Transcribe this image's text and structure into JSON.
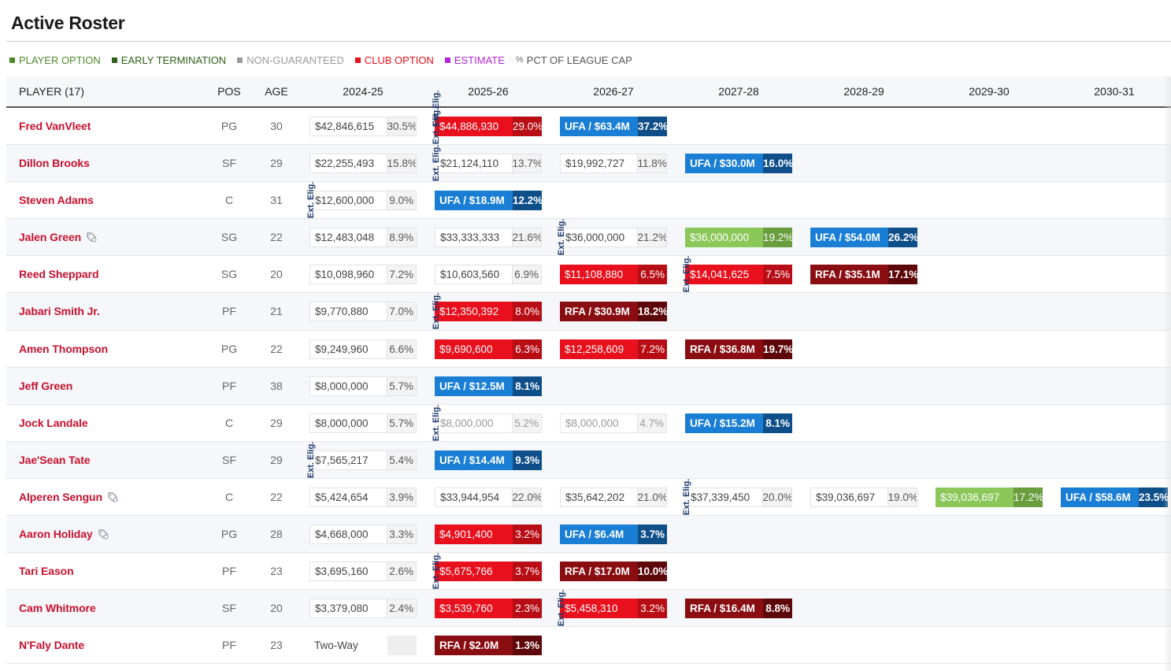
{
  "title": "Active Roster",
  "legend": [
    {
      "label": "PLAYER OPTION",
      "color": "#4e8a2b",
      "swatch": "#4e8a2b"
    },
    {
      "label": "EARLY TERMINATION",
      "color": "#2e5f19",
      "swatch": "#2e5f19"
    },
    {
      "label": "NON-GUARANTEED",
      "color": "#9a9a9a",
      "swatch": "#9a9a9a"
    },
    {
      "label": "CLUB OPTION",
      "color": "#e8101c",
      "swatch": "#e8101c"
    },
    {
      "label": "ESTIMATE",
      "color": "#b626d9",
      "swatch": "#b626d9"
    },
    {
      "label": "PCT OF LEAGUE CAP",
      "color": "#555555",
      "swatch": "",
      "prefix": "%"
    }
  ],
  "columns": {
    "player": "PLAYER (17)",
    "pos": "POS",
    "age": "AGE",
    "seasons": [
      "2024-25",
      "2025-26",
      "2026-27",
      "2027-28",
      "2028-29",
      "2029-30",
      "2030-31"
    ]
  },
  "ext_label": "Ext. Elig.",
  "rows": [
    {
      "name": "Fred VanVleet",
      "pos": "PG",
      "age": "30",
      "tag": false,
      "cells": [
        {
          "col": 0,
          "type": "g",
          "amt": "$42,846,615",
          "pct": "30.5%"
        },
        {
          "col": 1,
          "type": "club",
          "amt": "$44,886,930",
          "pct": "29.0%"
        },
        {
          "col": 2,
          "type": "ufa",
          "amt": "UFA / $63.4M",
          "pct": "37.2%"
        }
      ],
      "ext": [
        1,
        1.5
      ]
    },
    {
      "name": "Dillon Brooks",
      "pos": "SF",
      "age": "29",
      "tag": false,
      "cells": [
        {
          "col": 0,
          "type": "g",
          "amt": "$22,255,493",
          "pct": "15.8%"
        },
        {
          "col": 1,
          "type": "g",
          "amt": "$21,124,110",
          "pct": "13.7%"
        },
        {
          "col": 2,
          "type": "g",
          "amt": "$19,992,727",
          "pct": "11.8%"
        },
        {
          "col": 3,
          "type": "ufa",
          "amt": "UFA / $30.0M",
          "pct": "16.0%"
        }
      ],
      "ext": [
        1
      ]
    },
    {
      "name": "Steven Adams",
      "pos": "C",
      "age": "31",
      "tag": false,
      "cells": [
        {
          "col": 0,
          "type": "g",
          "amt": "$12,600,000",
          "pct": "9.0%"
        },
        {
          "col": 1,
          "type": "ufa",
          "amt": "UFA / $18.9M",
          "pct": "12.2%"
        }
      ],
      "ext": [
        0
      ]
    },
    {
      "name": "Jalen Green",
      "pos": "SG",
      "age": "22",
      "tag": true,
      "cells": [
        {
          "col": 0,
          "type": "g",
          "amt": "$12,483,048",
          "pct": "8.9%"
        },
        {
          "col": 1,
          "type": "g",
          "amt": "$33,333,333",
          "pct": "21.6%"
        },
        {
          "col": 2,
          "type": "g",
          "amt": "$36,000,000",
          "pct": "21.2%"
        },
        {
          "col": 3,
          "type": "po",
          "amt": "$36,000,000",
          "pct": "19.2%"
        },
        {
          "col": 4,
          "type": "ufa",
          "amt": "UFA / $54.0M",
          "pct": "26.2%"
        }
      ],
      "ext": [
        2
      ]
    },
    {
      "name": "Reed Sheppard",
      "pos": "SG",
      "age": "20",
      "tag": false,
      "cells": [
        {
          "col": 0,
          "type": "g",
          "amt": "$10,098,960",
          "pct": "7.2%"
        },
        {
          "col": 1,
          "type": "g",
          "amt": "$10,603,560",
          "pct": "6.9%"
        },
        {
          "col": 2,
          "type": "club",
          "amt": "$11,108,880",
          "pct": "6.5%"
        },
        {
          "col": 3,
          "type": "club",
          "amt": "$14,041,625",
          "pct": "7.5%"
        },
        {
          "col": 4,
          "type": "rfa",
          "amt": "RFA / $35.1M",
          "pct": "17.1%"
        }
      ],
      "ext": [
        3
      ]
    },
    {
      "name": "Jabari Smith Jr.",
      "pos": "PF",
      "age": "21",
      "tag": false,
      "cells": [
        {
          "col": 0,
          "type": "g",
          "amt": "$9,770,880",
          "pct": "7.0%"
        },
        {
          "col": 1,
          "type": "club",
          "amt": "$12,350,392",
          "pct": "8.0%"
        },
        {
          "col": 2,
          "type": "rfa",
          "amt": "RFA / $30.9M",
          "pct": "18.2%"
        }
      ],
      "ext": [
        1
      ]
    },
    {
      "name": "Amen Thompson",
      "pos": "PG",
      "age": "22",
      "tag": false,
      "cells": [
        {
          "col": 0,
          "type": "g",
          "amt": "$9,249,960",
          "pct": "6.6%"
        },
        {
          "col": 1,
          "type": "club",
          "amt": "$9,690,600",
          "pct": "6.3%"
        },
        {
          "col": 2,
          "type": "club",
          "amt": "$12,258,609",
          "pct": "7.2%"
        },
        {
          "col": 3,
          "type": "rfa",
          "amt": "RFA / $36.8M",
          "pct": "19.7%"
        }
      ],
      "ext": []
    },
    {
      "name": "Jeff Green",
      "pos": "PF",
      "age": "38",
      "tag": false,
      "cells": [
        {
          "col": 0,
          "type": "g",
          "amt": "$8,000,000",
          "pct": "5.7%"
        },
        {
          "col": 1,
          "type": "ufa",
          "amt": "UFA / $12.5M",
          "pct": "8.1%"
        }
      ],
      "ext": []
    },
    {
      "name": "Jock Landale",
      "pos": "C",
      "age": "29",
      "tag": false,
      "cells": [
        {
          "col": 0,
          "type": "g",
          "amt": "$8,000,000",
          "pct": "5.7%"
        },
        {
          "col": 1,
          "type": "ng",
          "amt": "$8,000,000",
          "pct": "5.2%"
        },
        {
          "col": 2,
          "type": "ng",
          "amt": "$8,000,000",
          "pct": "4.7%"
        },
        {
          "col": 3,
          "type": "ufa",
          "amt": "UFA / $15.2M",
          "pct": "8.1%"
        }
      ],
      "ext": [
        1
      ]
    },
    {
      "name": "Jae'Sean Tate",
      "pos": "SF",
      "age": "29",
      "tag": false,
      "cells": [
        {
          "col": 0,
          "type": "g",
          "amt": "$7,565,217",
          "pct": "5.4%"
        },
        {
          "col": 1,
          "type": "ufa",
          "amt": "UFA / $14.4M",
          "pct": "9.3%"
        }
      ],
      "ext": [
        0
      ]
    },
    {
      "name": "Alperen Sengun",
      "pos": "C",
      "age": "22",
      "tag": true,
      "cells": [
        {
          "col": 0,
          "type": "g",
          "amt": "$5,424,654",
          "pct": "3.9%"
        },
        {
          "col": 1,
          "type": "g",
          "amt": "$33,944,954",
          "pct": "22.0%"
        },
        {
          "col": 2,
          "type": "g",
          "amt": "$35,642,202",
          "pct": "21.0%"
        },
        {
          "col": 3,
          "type": "g",
          "amt": "$37,339,450",
          "pct": "20.0%"
        },
        {
          "col": 4,
          "type": "g",
          "amt": "$39,036,697",
          "pct": "19.0%"
        },
        {
          "col": 5,
          "type": "po",
          "amt": "$39,036,697",
          "pct": "17.2%"
        },
        {
          "col": 6,
          "type": "ufa",
          "amt": "UFA / $58.6M",
          "pct": "23.5%"
        }
      ],
      "ext": [
        3
      ]
    },
    {
      "name": "Aaron Holiday",
      "pos": "PG",
      "age": "28",
      "tag": true,
      "cells": [
        {
          "col": 0,
          "type": "g",
          "amt": "$4,668,000",
          "pct": "3.3%"
        },
        {
          "col": 1,
          "type": "club",
          "amt": "$4,901,400",
          "pct": "3.2%"
        },
        {
          "col": 2,
          "type": "ufa",
          "amt": "UFA / $6.4M",
          "pct": "3.7%"
        }
      ],
      "ext": []
    },
    {
      "name": "Tari Eason",
      "pos": "PF",
      "age": "23",
      "tag": false,
      "cells": [
        {
          "col": 0,
          "type": "g",
          "amt": "$3,695,160",
          "pct": "2.6%"
        },
        {
          "col": 1,
          "type": "club",
          "amt": "$5,675,766",
          "pct": "3.7%"
        },
        {
          "col": 2,
          "type": "rfa",
          "amt": "RFA / $17.0M",
          "pct": "10.0%"
        }
      ],
      "ext": [
        1
      ]
    },
    {
      "name": "Cam Whitmore",
      "pos": "SF",
      "age": "20",
      "tag": false,
      "cells": [
        {
          "col": 0,
          "type": "g",
          "amt": "$3,379,080",
          "pct": "2.4%"
        },
        {
          "col": 1,
          "type": "club",
          "amt": "$3,539,760",
          "pct": "2.3%"
        },
        {
          "col": 2,
          "type": "club",
          "amt": "$5,458,310",
          "pct": "3.2%"
        },
        {
          "col": 3,
          "type": "rfa",
          "amt": "RFA / $16.4M",
          "pct": "8.8%"
        }
      ],
      "ext": [
        2
      ]
    },
    {
      "name": "N'Faly Dante",
      "pos": "PF",
      "age": "23",
      "tag": false,
      "cells": [
        {
          "col": 0,
          "type": "tw",
          "amt": "Two-Way",
          "pct": ""
        },
        {
          "col": 1,
          "type": "rfa",
          "amt": "RFA / $2.0M",
          "pct": "1.3%"
        }
      ],
      "ext": []
    }
  ]
}
